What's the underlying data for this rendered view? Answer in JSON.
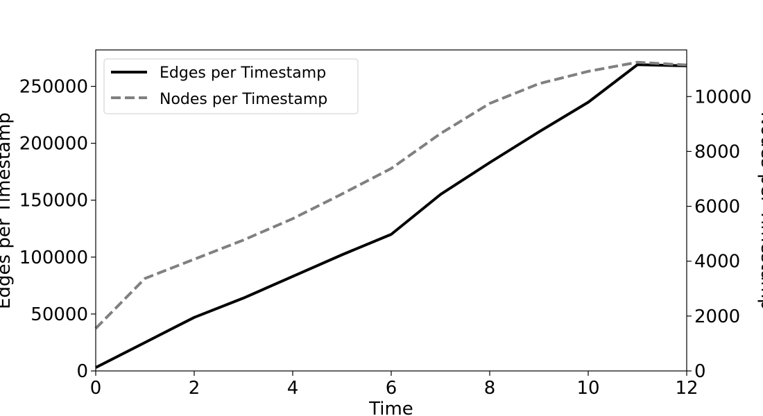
{
  "chart_data": {
    "type": "line",
    "x": [
      0,
      1,
      2,
      3,
      4,
      5,
      6,
      7,
      8,
      9,
      10,
      11,
      12
    ],
    "xlabel": "Time",
    "xlim": [
      0,
      12
    ],
    "xticks": [
      0,
      2,
      4,
      6,
      8,
      10,
      12
    ],
    "grid": false,
    "legend_position": "top-left",
    "series": [
      {
        "name": "Edges per Timestamp",
        "axis": "left",
        "color": "#000000",
        "style": "solid",
        "values": [
          3000,
          25000,
          47000,
          64000,
          83000,
          102000,
          120000,
          155000,
          183000,
          210000,
          236000,
          269000,
          268000
        ]
      },
      {
        "name": "Nodes per Timestamp",
        "axis": "right",
        "color": "#808080",
        "style": "dashed",
        "values": [
          1550,
          3370,
          4070,
          4770,
          5550,
          6450,
          7380,
          8650,
          9750,
          10470,
          10920,
          11250,
          11150
        ]
      }
    ],
    "y_left": {
      "label": "Edges per Timestamp",
      "lim": [
        0,
        282000
      ],
      "ticks": [
        0,
        50000,
        100000,
        150000,
        200000,
        250000
      ]
    },
    "y_right": {
      "label": "Nodes per Timestamp",
      "lim": [
        0,
        11700
      ],
      "ticks": [
        0,
        2000,
        4000,
        6000,
        8000,
        10000
      ]
    }
  }
}
